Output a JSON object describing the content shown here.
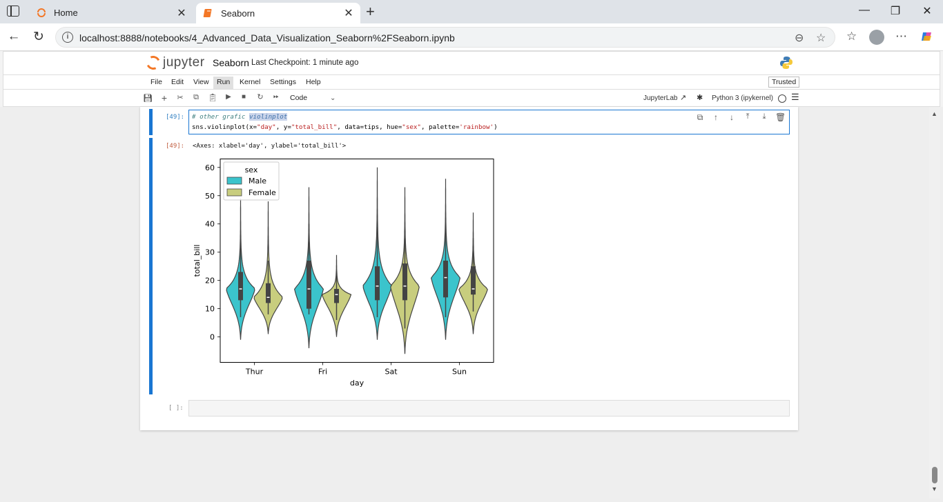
{
  "browser": {
    "tabs": [
      {
        "label": "Home",
        "close": "✕"
      },
      {
        "label": "Seaborn",
        "close": "✕"
      }
    ],
    "new_tab": "+",
    "window": {
      "minimize": "—",
      "restore": "❐",
      "close": "✕"
    },
    "url": "localhost:8888/notebooks/4_Advanced_Data_Visualization_Seaborn%2FSeaborn.ipynb"
  },
  "jupyter": {
    "logo_text": "jupyter",
    "notebook_title": "Seaborn",
    "checkpoint": "Last Checkpoint: 1 minute ago",
    "trusted": "Trusted",
    "menu": [
      "File",
      "Edit",
      "View",
      "Run",
      "Kernel",
      "Settings",
      "Help"
    ],
    "active_menu": "Run",
    "cell_type": "Code",
    "jupyterlab_link": "JupyterLab",
    "kernel": "Python 3 (ipykernel)"
  },
  "cells": {
    "code_cell": {
      "prompt": "[49]:",
      "comment_prefix": "# other grafic ",
      "comment_selected": "violinplot",
      "line2_a": "sns.violinplot(x=",
      "line2_s1": "\"day\"",
      "line2_b": ", y=",
      "line2_s2": "\"total_bill\"",
      "line2_c": ", data=tips, hue=",
      "line2_s3": "\"sex\"",
      "line2_d": ", palette=",
      "line2_s4": "'rainbow'",
      "line2_e": ")"
    },
    "output_cell": {
      "prompt": "[49]:",
      "text": "<Axes: xlabel='day', ylabel='total_bill'>"
    },
    "empty_cell": {
      "prompt": "[ ]:"
    }
  },
  "chart_data": {
    "type": "violin",
    "xlabel": "day",
    "ylabel": "total_bill",
    "categories": [
      "Thur",
      "Fri",
      "Sat",
      "Sun"
    ],
    "ylim": [
      -9,
      63
    ],
    "yticks": [
      0,
      10,
      20,
      30,
      40,
      50,
      60
    ],
    "legend": {
      "title": "sex",
      "placement": "top-left",
      "entries": [
        "Male",
        "Female"
      ]
    },
    "colors": {
      "Male": "#3bc4cc",
      "Female": "#c8cd7e"
    },
    "series": [
      {
        "name": "Male",
        "violins": [
          {
            "min": -1,
            "max": 49,
            "q1": 13,
            "median": 17,
            "q3": 23,
            "whisker_low": 7,
            "whisker_high": 34
          },
          {
            "min": -4,
            "max": 53,
            "q1": 10,
            "median": 17,
            "q3": 27,
            "whisker_low": 8,
            "whisker_high": 40
          },
          {
            "min": -1,
            "max": 60,
            "q1": 13,
            "median": 18,
            "q3": 25,
            "whisker_low": 7,
            "whisker_high": 39
          },
          {
            "min": -1,
            "max": 56,
            "q1": 14,
            "median": 21,
            "q3": 27,
            "whisker_low": 7,
            "whisker_high": 40
          }
        ]
      },
      {
        "name": "Female",
        "violins": [
          {
            "min": 1,
            "max": 48,
            "q1": 12,
            "median": 14,
            "q3": 19,
            "whisker_low": 8,
            "whisker_high": 27
          },
          {
            "min": 0,
            "max": 29,
            "q1": 12,
            "median": 15,
            "q3": 17,
            "whisker_low": 6,
            "whisker_high": 23
          },
          {
            "min": -6,
            "max": 53,
            "q1": 13,
            "median": 18,
            "q3": 26,
            "whisker_low": 3,
            "whisker_high": 35
          },
          {
            "min": 1,
            "max": 44,
            "q1": 15,
            "median": 17,
            "q3": 25,
            "whisker_low": 9,
            "whisker_high": 35
          }
        ]
      }
    ]
  }
}
